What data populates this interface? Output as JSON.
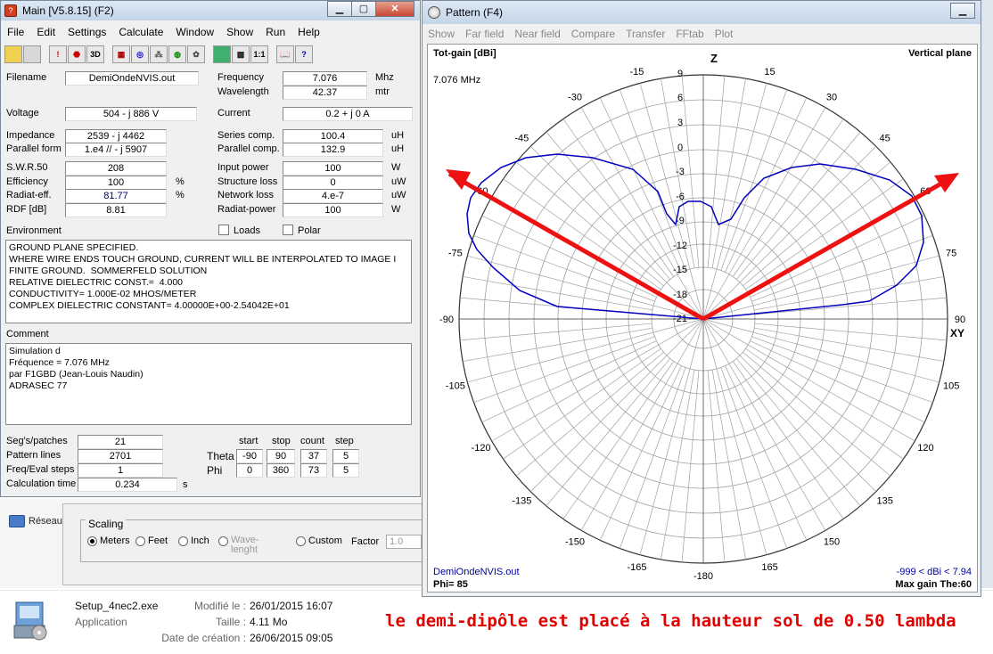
{
  "main_window": {
    "title": "Main [V5.8.15]  (F2)",
    "menu": [
      "File",
      "Edit",
      "Settings",
      "Calculate",
      "Window",
      "Show",
      "Run",
      "Help"
    ],
    "toolbar_3d": "3D",
    "toolbar_ratio": "1:1",
    "filename_label": "Filename",
    "filename": "DemiOndeNVIS.out",
    "frequency_label": "Frequency",
    "frequency": "7.076",
    "frequency_unit": "Mhz",
    "wavelength_label": "Wavelength",
    "wavelength": "42.37",
    "wavelength_unit": "mtr",
    "voltage_label": "Voltage",
    "voltage": "504 - j 886 V",
    "current_label": "Current",
    "current": "0.2 + j 0 A",
    "impedance_label": "Impedance",
    "impedance": "2539 - j 4462",
    "series_comp_label": "Series comp.",
    "series_comp": "100.4",
    "series_comp_unit": "uH",
    "parallel_form_label": "Parallel form",
    "parallel_form": "1.e4 // - j 5907",
    "parallel_comp_label": "Parallel comp.",
    "parallel_comp": "132.9",
    "parallel_comp_unit": "uH",
    "swr_label": "S.W.R.50",
    "swr": "208",
    "input_power_label": "Input power",
    "input_power": "100",
    "input_power_unit": "W",
    "efficiency_label": "Efficiency",
    "efficiency": "100",
    "efficiency_unit": "%",
    "structure_loss_label": "Structure loss",
    "structure_loss": "0",
    "structure_loss_unit": "uW",
    "radiat_eff_label": "Radiat-eff.",
    "radiat_eff": "81.77",
    "radiat_eff_unit": "%",
    "network_loss_label": "Network loss",
    "network_loss": "4.e-7",
    "network_loss_unit": "uW",
    "rdf_label": "RDF [dB]",
    "rdf": "8.81",
    "radiat_power_label": "Radiat-power",
    "radiat_power": "100",
    "radiat_power_unit": "W",
    "environment_label": "Environment",
    "loads_label": "Loads",
    "polar_label": "Polar",
    "environment_text": "GROUND PLANE SPECIFIED.\nWHERE WIRE ENDS TOUCH GROUND, CURRENT WILL BE INTERPOLATED TO IMAGE I\nFINITE GROUND.  SOMMERFELD SOLUTION\nRELATIVE DIELECTRIC CONST.=  4.000\nCONDUCTIVITY= 1.000E-02 MHOS/METER\nCOMPLEX DIELECTRIC CONSTANT= 4.00000E+00-2.54042E+01",
    "comment_label": "Comment",
    "comment_text": "Simulation d\nFréquence = 7.076 MHz\npar F1GBD (Jean-Louis Naudin)\nADRASEC 77",
    "segs_label": "Seg's/patches",
    "segs": "21",
    "pattern_lines_label": "Pattern lines",
    "pattern_lines": "2701",
    "freq_eval_label": "Freq/Eval steps",
    "freq_eval": "1",
    "calc_time_label": "Calculation time",
    "calc_time": "0.234",
    "calc_time_unit": "s",
    "col_start": "start",
    "col_stop": "stop",
    "col_count": "count",
    "col_step": "step",
    "theta_label": "Theta",
    "theta": [
      "-90",
      "90",
      "37",
      "5"
    ],
    "phi_label": "Phi",
    "phi": [
      "0",
      "360",
      "73",
      "5"
    ]
  },
  "pattern_window": {
    "title": "Pattern   (F4)",
    "menu": [
      "Show",
      "Far field",
      "Near field",
      "Compare",
      "Transfer",
      "FFtab",
      "Plot"
    ],
    "tot_gain_label": "Tot-gain [dBi]",
    "freq_text": "7.076 MHz",
    "plane_label": "Vertical plane",
    "z_label": "Z",
    "xy_label": "XY",
    "file_label": "DemiOndeNVIS.out",
    "phi_text": "Phi= 85",
    "range_text": "-999 < dBi < 7.94",
    "max_gain_text": "Max gain The:60",
    "angle_labels": [
      "-15",
      "15",
      "-30",
      "30",
      "-45",
      "45",
      "-60",
      "60",
      "-75",
      "75",
      "-90",
      "90",
      "-105",
      "105",
      "-120",
      "120",
      "-135",
      "135",
      "-150",
      "150",
      "-165",
      "165",
      "-180"
    ],
    "db_labels": [
      "9",
      "6",
      "3",
      "0",
      "-3",
      "-6",
      "-9",
      "-12",
      "-15",
      "-18",
      "-21"
    ]
  },
  "background": {
    "network_label": "Réseau",
    "scaling_label": "Scaling",
    "meters_label": "Meters",
    "feet_label": "Feet",
    "inch_label": "Inch",
    "wavelength_label": "Wave-\nlenght",
    "custom_label": "Custom",
    "factor_label": "Factor",
    "factor_value": "1.0"
  },
  "file_info": {
    "name": "Setup_4nec2.exe",
    "type": "Application",
    "modified_label": "Modifié le :",
    "modified": "26/01/2015 16:07",
    "size_label": "Taille :",
    "size": "4.11 Mo",
    "created_label": "Date de création :",
    "created": "26/06/2015 09:05"
  },
  "annotation": "le demi-dipôle est placé à la hauteur sol de 0.50 lambda",
  "colors": {
    "pattern_line": "#0000c0",
    "grid_line": "#a0a0a0",
    "arrow": "#ee1111",
    "caption": "#e00000"
  }
}
